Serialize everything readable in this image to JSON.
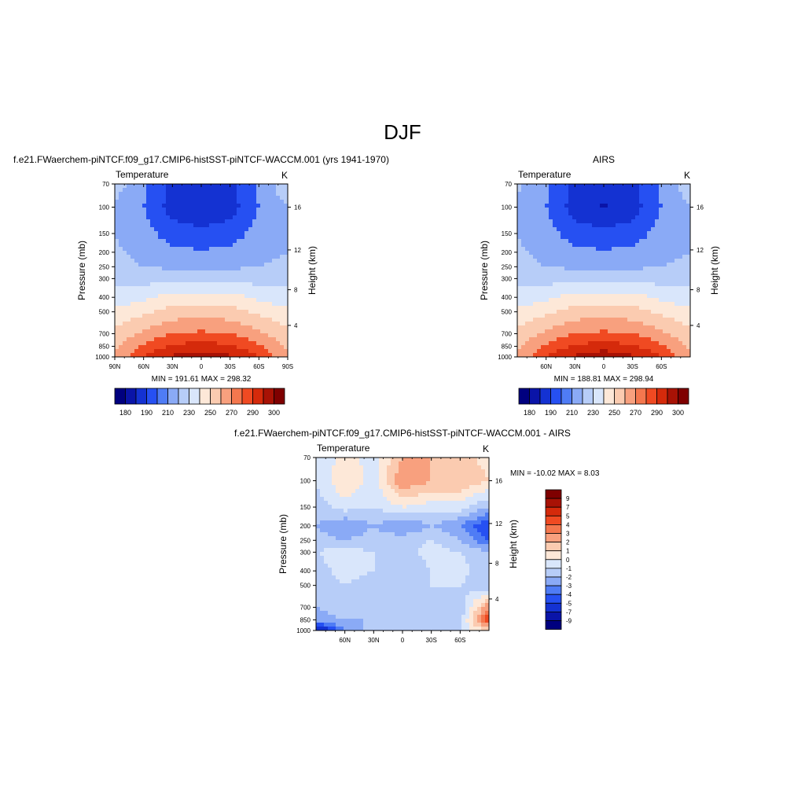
{
  "figure": {
    "title": "DJF"
  },
  "panels": [
    {
      "title": "f.e21.FWaerchem-piNTCF.f09_g17.CMIP6-histSST-piNTCF-WACCM.001 (yrs 1941-1970)",
      "left_label": "Temperature",
      "right_label": "K",
      "ylabel": "Pressure (mb)",
      "y2label": "Height (km)",
      "minmax": "MIN = 191.61  MAX = 298.32"
    },
    {
      "title": "AIRS",
      "left_label": "Temperature",
      "right_label": "K",
      "ylabel": "Pressure (mb)",
      "y2label": "Height (km)",
      "minmax": "MIN = 188.81  MAX = 298.94"
    },
    {
      "title": "f.e21.FWaerchem-piNTCF.f09_g17.CMIP6-histSST-piNTCF-WACCM.001 - AIRS",
      "left_label": "Temperature",
      "right_label": "K",
      "ylabel": "Pressure (mb)",
      "y2label": "Height (km)",
      "minmax": "MIN = -10.02  MAX =   8.03"
    }
  ],
  "axes": {
    "pressure_ticks": [
      "70",
      "100",
      "150",
      "200",
      "250",
      "300",
      "400",
      "500",
      "700",
      "850",
      "1000"
    ],
    "height_ticks": [
      "16",
      "12",
      "8",
      "4"
    ],
    "lat_ticks_full": [
      "90N",
      "60N",
      "30N",
      "0",
      "30S",
      "60S",
      "90S"
    ],
    "lat_ticks_partial": [
      "60N",
      "30N",
      "0",
      "30S",
      "60S"
    ]
  },
  "colorbars": {
    "temperature_labels": [
      "180",
      "190",
      "210",
      "230",
      "250",
      "270",
      "290",
      "300"
    ],
    "difference_labels": [
      "9",
      "7",
      "5",
      "4",
      "3",
      "2",
      "1",
      "0",
      "-1",
      "-2",
      "-3",
      "-4",
      "-5",
      "-7",
      "-9"
    ]
  },
  "colors": {
    "temperature_scale": [
      "#00007f",
      "#0a14a8",
      "#1432d2",
      "#2650f2",
      "#4f7cf5",
      "#8aaaf6",
      "#b7cdf8",
      "#d9e6fb",
      "#fde8d8",
      "#fbcbb0",
      "#f8a07e",
      "#f4774e",
      "#f04a22",
      "#d52a0b",
      "#a81205",
      "#7f0000"
    ],
    "difference_scale": [
      "#7f0000",
      "#a81205",
      "#d52a0b",
      "#f04a22",
      "#f4774e",
      "#f8a07e",
      "#fbcbb0",
      "#fde8d8",
      "#d9e6fb",
      "#b7cdf8",
      "#8aaaf6",
      "#4f7cf5",
      "#2650f2",
      "#1432d2",
      "#0a14a8",
      "#00007f"
    ]
  },
  "chart_data": [
    {
      "type": "heatmap",
      "title": "f.e21.FWaerchem-piNTCF.f09_g17.CMIP6-histSST-piNTCF-WACCM.001 (yrs 1941-1970)",
      "xlabel": "",
      "ylabel": "Pressure (mb)",
      "x": [
        -90,
        -60,
        -30,
        0,
        30,
        60,
        90
      ],
      "y": [
        70,
        100,
        150,
        200,
        250,
        300,
        400,
        500,
        700,
        850,
        1000
      ],
      "values": [
        [
          225,
          212,
          198,
          194,
          198,
          212,
          228
        ],
        [
          218,
          210,
          195,
          191,
          195,
          210,
          220
        ],
        [
          220,
          214,
          205,
          203,
          205,
          214,
          218
        ],
        [
          222,
          216,
          213,
          211,
          213,
          216,
          220
        ],
        [
          224,
          220,
          218,
          216,
          218,
          220,
          224
        ],
        [
          227,
          225,
          228,
          226,
          228,
          225,
          227
        ],
        [
          234,
          238,
          244,
          245,
          244,
          238,
          234
        ],
        [
          242,
          248,
          254,
          256,
          254,
          248,
          242
        ],
        [
          254,
          262,
          270,
          272,
          270,
          262,
          254
        ],
        [
          258,
          272,
          282,
          284,
          282,
          272,
          258
        ],
        [
          262,
          280,
          292,
          298,
          292,
          280,
          262
        ]
      ],
      "min": 191.61,
      "max": 298.32
    },
    {
      "type": "heatmap",
      "title": "AIRS",
      "xlabel": "",
      "ylabel": "Pressure (mb)",
      "x": [
        -90,
        -60,
        -30,
        0,
        30,
        60,
        90
      ],
      "y": [
        70,
        100,
        150,
        200,
        250,
        300,
        400,
        500,
        700,
        850,
        1000
      ],
      "values": [
        [
          222,
          212,
          198,
          194,
          198,
          212,
          226
        ],
        [
          218,
          210,
          195,
          189,
          195,
          210,
          220
        ],
        [
          220,
          214,
          205,
          203,
          205,
          214,
          218
        ],
        [
          222,
          216,
          213,
          211,
          213,
          216,
          220
        ],
        [
          224,
          220,
          218,
          216,
          218,
          220,
          224
        ],
        [
          227,
          225,
          228,
          226,
          228,
          225,
          227
        ],
        [
          234,
          238,
          244,
          245,
          244,
          238,
          234
        ],
        [
          242,
          248,
          254,
          256,
          254,
          248,
          242
        ],
        [
          254,
          262,
          270,
          272,
          270,
          262,
          254
        ],
        [
          258,
          272,
          282,
          284,
          282,
          272,
          258
        ],
        [
          262,
          280,
          292,
          299,
          292,
          280,
          262
        ]
      ],
      "min": 188.81,
      "max": 298.94
    },
    {
      "type": "heatmap",
      "title": "f.e21.FWaerchem-piNTCF.f09_g17.CMIP6-histSST-piNTCF-WACCM.001 - AIRS",
      "xlabel": "",
      "ylabel": "Pressure (mb)",
      "x": [
        -90,
        -60,
        -30,
        0,
        30,
        60,
        90
      ],
      "y": [
        70,
        100,
        150,
        200,
        250,
        300,
        400,
        500,
        700,
        850,
        1000
      ],
      "values": [
        [
          -1,
          0.5,
          -0.5,
          2,
          2,
          1.5,
          0.5
        ],
        [
          -1,
          1,
          -0.5,
          3,
          2,
          2,
          1
        ],
        [
          -1.5,
          -0.5,
          -1,
          0,
          -0.5,
          -0.5,
          -2
        ],
        [
          -2,
          -3,
          -2,
          -3,
          -2,
          -3,
          -5
        ],
        [
          -1.5,
          -2,
          -1.5,
          -1.5,
          -1,
          -2,
          -4
        ],
        [
          -1,
          -0.5,
          -1,
          -1.5,
          -0.5,
          -1,
          -2
        ],
        [
          -1.5,
          -0.5,
          -1,
          -2,
          -1,
          -0.5,
          -2
        ],
        [
          -2,
          -1,
          -1.5,
          -2,
          -1,
          -1,
          -2
        ],
        [
          -2,
          -1.5,
          -2,
          -2,
          -1.5,
          -2,
          3
        ],
        [
          -2.5,
          -2,
          -2,
          -1.5,
          -2,
          -1.5,
          5
        ],
        [
          -7,
          -3,
          -1.5,
          -1,
          -1.5,
          -1,
          1
        ]
      ],
      "min": -10.02,
      "max": 8.03
    }
  ]
}
